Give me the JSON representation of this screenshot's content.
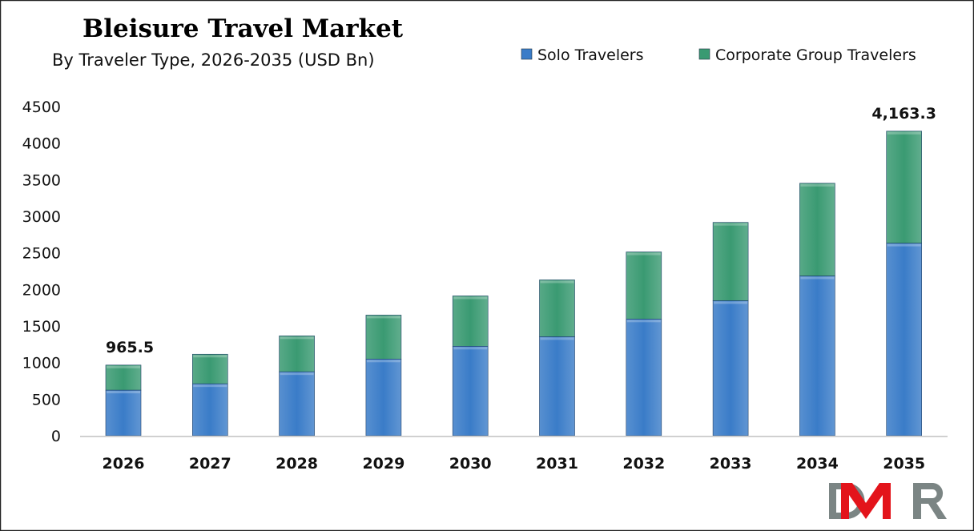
{
  "chart_data": {
    "type": "bar",
    "stacked": true,
    "title": "Bleisure Travel Market",
    "subtitle": "By Traveler Type, 2026-2035 (USD Bn)",
    "categories": [
      "2026",
      "2027",
      "2028",
      "2029",
      "2030",
      "2031",
      "2032",
      "2033",
      "2034",
      "2035"
    ],
    "series": [
      {
        "name": "Solo Travelers",
        "color": "#3a7cc8",
        "values": [
          623,
          710,
          874,
          1048,
          1223,
          1354,
          1595,
          1846,
          2184,
          2632
        ]
      },
      {
        "name": "Corporate Group Travelers",
        "color": "#3a9a72",
        "values": [
          342.5,
          404,
          491,
          601,
          688,
          776,
          917,
          1070,
          1267,
          1531.3
        ]
      }
    ],
    "data_labels": [
      {
        "category": "2026",
        "text": "965.5"
      },
      {
        "category": "2035",
        "text": "4,163.3"
      }
    ],
    "ylim": [
      0,
      4500
    ],
    "yticks": [
      0,
      500,
      1000,
      1500,
      2000,
      2500,
      3000,
      3500,
      4000,
      4500
    ],
    "grid": false,
    "legend_position": "top-right"
  },
  "logo": {
    "text": "DMR",
    "colors": [
      "#7b8584",
      "#e3141b"
    ]
  }
}
